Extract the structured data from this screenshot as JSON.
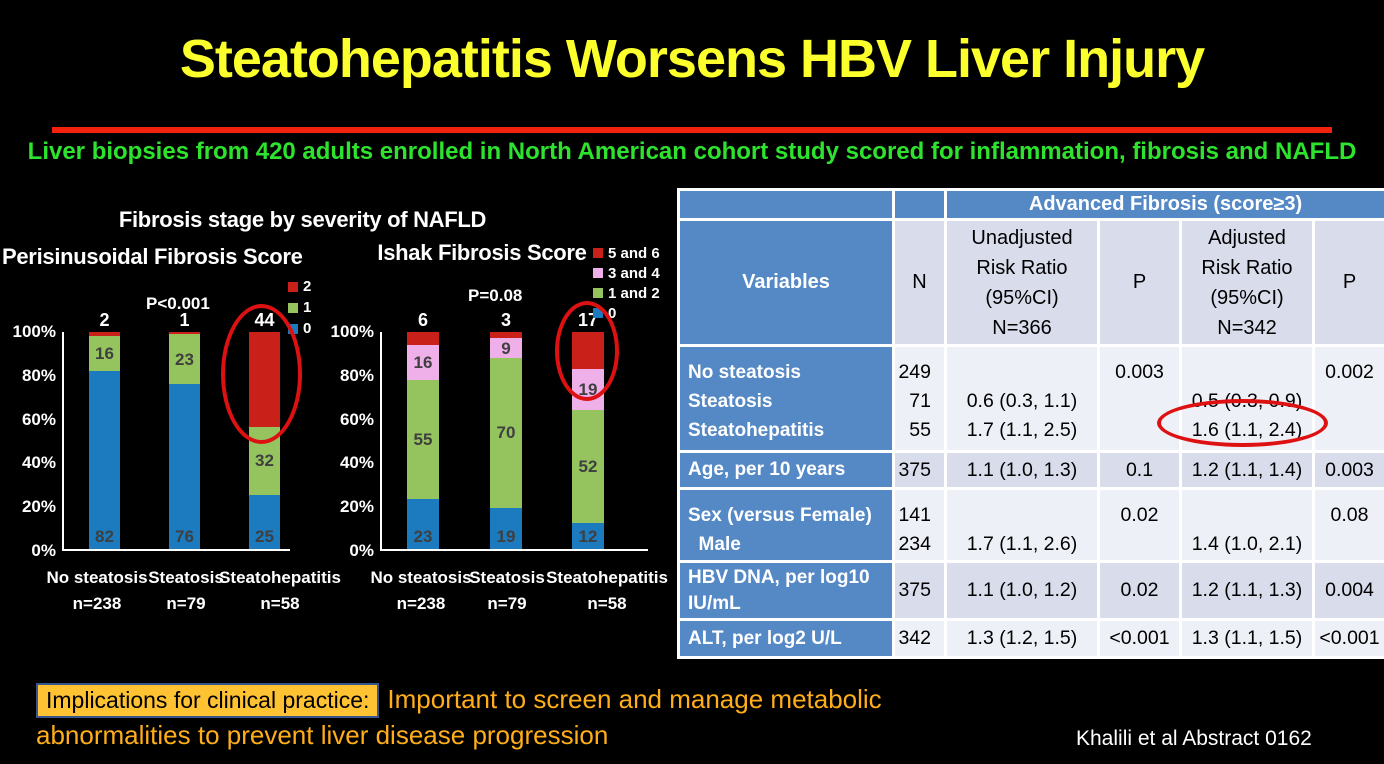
{
  "slide": {
    "title": "Steatohepatitis Worsens HBV Liver Injury",
    "subtitle": "Liver biopsies from 420 adults enrolled in North American cohort study scored for inflammation, fibrosis and NAFLD",
    "charts_heading": "Fibrosis stage by severity of NAFLD",
    "implications_label": "Implications for clinical practice:",
    "implications_text": "Important to screen and manage metabolic abnormalities to prevent liver disease progression",
    "citation": "Khalili et al Abstract 0162",
    "colors": {
      "title_yellow": "#FBFF2B",
      "divider_red": "#F2220F",
      "subtitle_green": "#2EE32E",
      "bar_blue": "#1B7BBE",
      "bar_green": "#95C45F",
      "bar_red": "#C9201A",
      "bar_pink": "#EFB0E9",
      "table_header_blue": "#5589C6",
      "band_light": "#EEF0F7",
      "band_dark": "#D9DCEB",
      "annotation_red": "#DD1111",
      "highlight_box_fill": "#FFC233",
      "implications_orange": "#FFAE1A"
    }
  },
  "chart_data": [
    {
      "type": "bar",
      "subtype": "stacked-100pct",
      "title": "Perisinusoidal Fibrosis Score",
      "p_annotation": "P<0.001",
      "y_ticks": [
        "100%",
        "80%",
        "60%",
        "40%",
        "20%",
        "0%"
      ],
      "ylim": [
        0,
        100
      ],
      "grid": false,
      "legend_position": "top-right",
      "categories": [
        "No steatosis",
        "Steatosis",
        "Steatohepatitis"
      ],
      "category_counts": [
        "n=238",
        "n=79",
        "n=58"
      ],
      "series": [
        {
          "name": "0",
          "color": "#1B7BBE",
          "values": [
            82,
            76,
            25
          ]
        },
        {
          "name": "1",
          "color": "#95C45F",
          "values": [
            16,
            23,
            32
          ]
        },
        {
          "name": "2",
          "color": "#C9201A",
          "values": [
            2,
            1,
            44
          ]
        }
      ],
      "annotation": "red ellipse circling the score-2 segment of the Steatohepatitis bar",
      "circled_category": "Steatohepatitis"
    },
    {
      "type": "bar",
      "subtype": "stacked-100pct",
      "title": "Ishak Fibrosis Score",
      "p_annotation": "P=0.08",
      "y_ticks": [
        "100%",
        "80%",
        "60%",
        "40%",
        "20%",
        "0%"
      ],
      "ylim": [
        0,
        100
      ],
      "grid": false,
      "legend_position": "top-right",
      "categories": [
        "No steatosis",
        "Steatosis",
        "Steatohepatitis"
      ],
      "category_counts": [
        "n=238",
        "n=79",
        "n=58"
      ],
      "series": [
        {
          "name": "0",
          "color": "#1B7BBE",
          "values": [
            23,
            19,
            12
          ]
        },
        {
          "name": "1 and 2",
          "color": "#95C45F",
          "values": [
            55,
            70,
            52
          ]
        },
        {
          "name": "3 and 4",
          "color": "#EFB0E9",
          "values": [
            16,
            9,
            19
          ]
        },
        {
          "name": "5 and 6",
          "color": "#C9201A",
          "values": [
            6,
            3,
            17
          ]
        }
      ],
      "annotation": "red ellipse circling the 5-and-6 and 3-and-4 segments of the Steatohepatitis bar",
      "circled_category": "Steatohepatitis"
    }
  ],
  "table": {
    "merged_header": "Advanced Fibrosis (score≥3)",
    "columns": [
      "Variables",
      "N",
      "Unadjusted\nRisk Ratio\n(95%CI)\nN=366",
      "P",
      "Adjusted\nRisk Ratio\n(95%CI)\nN=342",
      "P"
    ],
    "rows": [
      {
        "variable": [
          "No steatosis",
          "Steatosis",
          "Steatohepatitis"
        ],
        "n": [
          "249",
          "71",
          "55"
        ],
        "unadjusted": [
          "",
          "0.6 (0.3, 1.1)",
          "1.7 (1.1, 2.5)"
        ],
        "p_unadjusted": [
          "0.003",
          "",
          ""
        ],
        "adjusted": [
          "",
          "0.5 (0.3, 0.9)",
          "1.6 (1.1, 2.4)"
        ],
        "p_adjusted": [
          "0.002",
          "",
          ""
        ]
      },
      {
        "variable": [
          "Age, per 10 years"
        ],
        "n": [
          "375"
        ],
        "unadjusted": [
          "1.1 (1.0, 1.3)"
        ],
        "p_unadjusted": [
          "0.1"
        ],
        "adjusted": [
          "1.2 (1.1, 1.4)"
        ],
        "p_adjusted": [
          "0.003"
        ]
      },
      {
        "variable": [
          "Sex (versus Female)",
          "  Male"
        ],
        "n": [
          "141",
          "234"
        ],
        "unadjusted": [
          "",
          "1.7 (1.1, 2.6)"
        ],
        "p_unadjusted": [
          "0.02",
          ""
        ],
        "adjusted": [
          "",
          "1.4 (1.0, 2.1)"
        ],
        "p_adjusted": [
          "0.08",
          ""
        ]
      },
      {
        "variable": [
          "HBV DNA, per log10 IU/mL"
        ],
        "n": [
          "375"
        ],
        "unadjusted": [
          "1.1 (1.0, 1.2)"
        ],
        "p_unadjusted": [
          "0.02"
        ],
        "adjusted": [
          "1.2 (1.1, 1.3)"
        ],
        "p_adjusted": [
          "0.004"
        ]
      },
      {
        "variable": [
          "ALT, per log2 U/L"
        ],
        "n": [
          "342"
        ],
        "unadjusted": [
          "1.3 (1.2, 1.5)"
        ],
        "p_unadjusted": [
          "<0.001"
        ],
        "adjusted": [
          "1.3 (1.1, 1.5)"
        ],
        "p_adjusted": [
          "<0.001"
        ]
      }
    ],
    "circled_value": "1.6 (1.1, 2.4)"
  }
}
